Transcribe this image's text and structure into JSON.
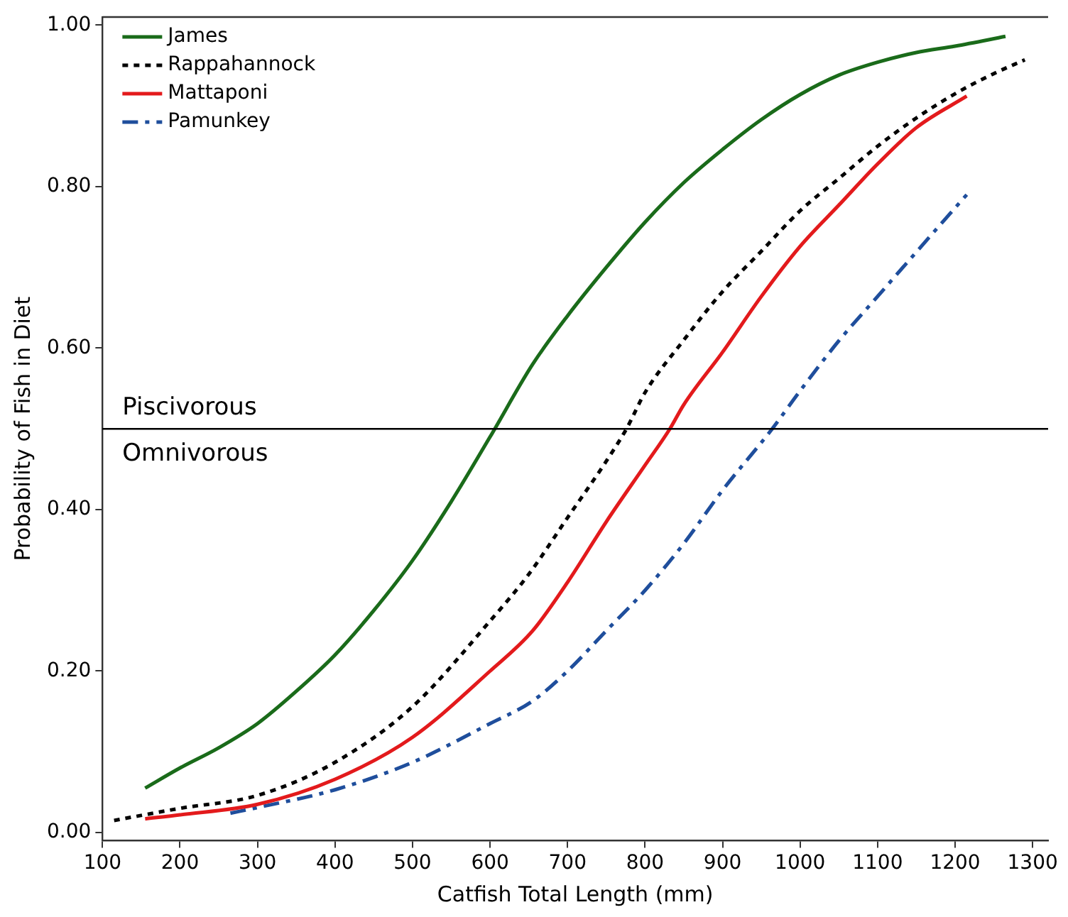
{
  "chart_data": {
    "type": "line",
    "xlabel": "Catfish Total Length (mm)",
    "ylabel": "Probability of Fish in Diet",
    "xlim": [
      100,
      1320
    ],
    "xticks": [
      100,
      200,
      300,
      400,
      500,
      600,
      700,
      800,
      900,
      1000,
      1100,
      1200,
      1300
    ],
    "ylim": [
      -0.01,
      1.01
    ],
    "yticks": [
      {
        "value": 0,
        "label": "0.00"
      },
      {
        "value": 0.2,
        "label": "0.20"
      },
      {
        "value": 0.4,
        "label": "0.40"
      },
      {
        "value": 0.6,
        "label": "0.60"
      },
      {
        "value": 0.8,
        "label": "0.80"
      },
      {
        "value": 1,
        "label": "1.00"
      }
    ],
    "grid": false,
    "legend": "top left",
    "marker": "none",
    "ref_lines": [
      {
        "axis": "y",
        "value": 0.5,
        "label": "Piscivorous",
        "color": "#000000"
      }
    ],
    "annotations": [
      "Omnivorous"
    ],
    "series": [
      {
        "name": "James",
        "color": "#1a6b1a",
        "line_style": "solid",
        "x": [
          155,
          200,
          250,
          300,
          350,
          400,
          450,
          500,
          550,
          600,
          655,
          700,
          750,
          800,
          850,
          900,
          950,
          1000,
          1050,
          1100,
          1150,
          1200,
          1265
        ],
        "values": [
          0.055,
          0.08,
          0.105,
          0.135,
          0.175,
          0.22,
          0.275,
          0.337,
          0.41,
          0.49,
          0.58,
          0.64,
          0.7,
          0.756,
          0.805,
          0.846,
          0.883,
          0.914,
          0.938,
          0.954,
          0.966,
          0.974,
          0.986
        ]
      },
      {
        "name": "Rappahannock",
        "color": "#000000",
        "line_style": "dotted",
        "x": [
          115,
          200,
          300,
          400,
          500,
          600,
          650,
          700,
          750,
          776,
          800,
          850,
          900,
          950,
          1000,
          1050,
          1100,
          1150,
          1200,
          1250,
          1290
        ],
        "values": [
          0.015,
          0.03,
          0.046,
          0.087,
          0.156,
          0.262,
          0.32,
          0.39,
          0.46,
          0.5,
          0.545,
          0.61,
          0.67,
          0.72,
          0.77,
          0.81,
          0.85,
          0.885,
          0.915,
          0.94,
          0.957
        ]
      },
      {
        "name": "Mattaponi",
        "color": "#e31a1c",
        "line_style": "solid",
        "x": [
          155,
          200,
          300,
          400,
          500,
          600,
          655,
          700,
          750,
          800,
          832,
          850,
          900,
          950,
          1000,
          1050,
          1100,
          1150,
          1215
        ],
        "values": [
          0.017,
          0.022,
          0.035,
          0.066,
          0.118,
          0.2,
          0.25,
          0.31,
          0.385,
          0.455,
          0.5,
          0.53,
          0.595,
          0.664,
          0.726,
          0.777,
          0.828,
          0.873,
          0.912
        ]
      },
      {
        "name": "Pamunkey",
        "color": "#1f4e9c",
        "line_style": "dashed",
        "x": [
          265,
          300,
          400,
          500,
          600,
          655,
          700,
          750,
          800,
          850,
          900,
          964,
          1000,
          1050,
          1100,
          1150,
          1215
        ],
        "values": [
          0.024,
          0.031,
          0.053,
          0.087,
          0.135,
          0.163,
          0.2,
          0.25,
          0.3,
          0.358,
          0.424,
          0.5,
          0.547,
          0.609,
          0.664,
          0.719,
          0.79
        ]
      }
    ]
  }
}
